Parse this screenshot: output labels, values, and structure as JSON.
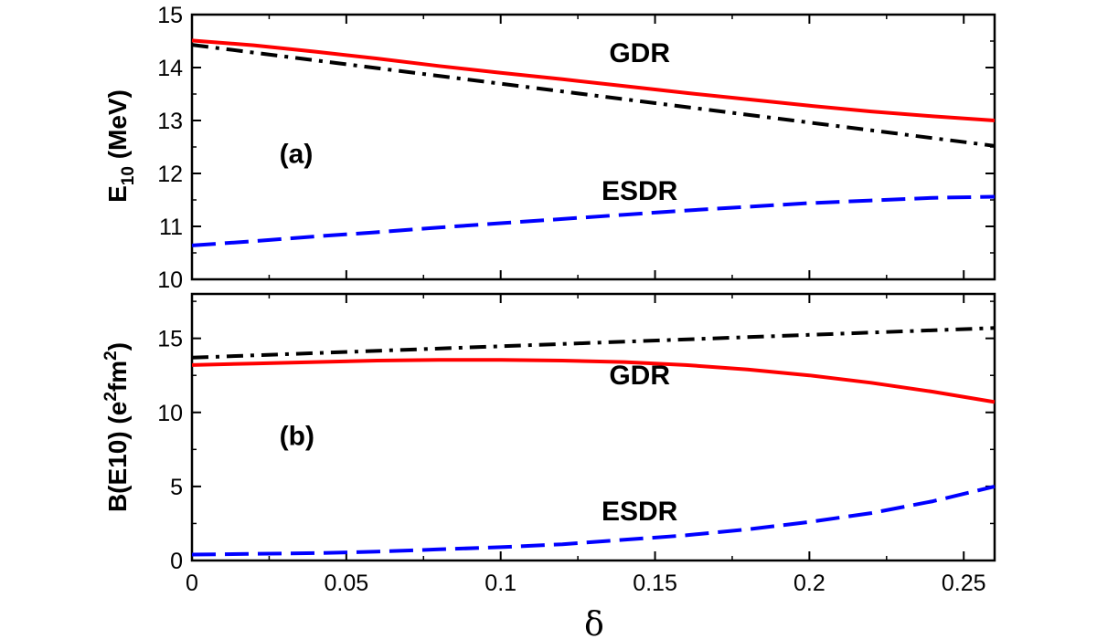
{
  "chart_data": [
    {
      "type": "line",
      "panel": "(a)",
      "ylabel_main": "E",
      "ylabel_sub": "10",
      "ylabel_unit": " (MeV)",
      "xlim": [
        0,
        0.26
      ],
      "ylim": [
        10,
        15
      ],
      "yticks": [
        10,
        11,
        12,
        13,
        14,
        15
      ],
      "grid": false,
      "annotations": [
        {
          "text": "GDR",
          "x": 0.145,
          "y": 14.1
        },
        {
          "text": "(a)",
          "x": 0.015,
          "y": 12.2
        },
        {
          "text": "ESDR",
          "x": 0.145,
          "y": 11.5
        }
      ],
      "series": [
        {
          "key": "gdr",
          "color": "#ff0000",
          "dash": "solid",
          "x": [
            0,
            0.02,
            0.04,
            0.06,
            0.08,
            0.1,
            0.12,
            0.14,
            0.16,
            0.18,
            0.2,
            0.22,
            0.24,
            0.26
          ],
          "y": [
            14.51,
            14.42,
            14.3,
            14.17,
            14.03,
            13.9,
            13.78,
            13.65,
            13.52,
            13.4,
            13.28,
            13.17,
            13.08,
            13.0
          ]
        },
        {
          "key": "dashdot",
          "color": "#000000",
          "dash": "dashdot",
          "x": [
            0,
            0.26
          ],
          "y": [
            14.43,
            12.52
          ]
        },
        {
          "key": "esdr",
          "color": "#0000ff",
          "dash": "dashed",
          "x": [
            0,
            0.02,
            0.04,
            0.06,
            0.08,
            0.1,
            0.12,
            0.14,
            0.16,
            0.18,
            0.2,
            0.22,
            0.24,
            0.26
          ],
          "y": [
            10.64,
            10.72,
            10.81,
            10.89,
            10.98,
            11.06,
            11.14,
            11.22,
            11.3,
            11.37,
            11.44,
            11.49,
            11.54,
            11.56
          ]
        }
      ]
    },
    {
      "type": "line",
      "panel": "(b)",
      "ylabel_main": "B(E10) (e",
      "ylabel_sup1": "2",
      "ylabel_mid": "fm",
      "ylabel_sup2": "2",
      "ylabel_end": ")",
      "xlabel": "δ",
      "xlim": [
        0,
        0.26
      ],
      "ylim": [
        0,
        18
      ],
      "xticks": [
        "0",
        "0.05",
        "0.1",
        "0.15",
        "0.2",
        "0.25"
      ],
      "xtick_values": [
        0,
        0.05,
        0.1,
        0.15,
        0.2,
        0.25
      ],
      "yticks": [
        0,
        5,
        10,
        15
      ],
      "grid": false,
      "annotations": [
        {
          "text": "GDR",
          "x": 0.145,
          "y": 11.9
        },
        {
          "text": "(b)",
          "x": 0.015,
          "y": 7.8
        },
        {
          "text": "ESDR",
          "x": 0.145,
          "y": 2.7
        }
      ],
      "series": [
        {
          "key": "dashdot",
          "color": "#000000",
          "dash": "dashdot",
          "x": [
            0,
            0.26
          ],
          "y": [
            13.7,
            15.7
          ]
        },
        {
          "key": "gdr",
          "color": "#ff0000",
          "dash": "solid",
          "x": [
            0,
            0.02,
            0.04,
            0.06,
            0.08,
            0.1,
            0.12,
            0.14,
            0.16,
            0.18,
            0.2,
            0.22,
            0.24,
            0.26
          ],
          "y": [
            13.2,
            13.3,
            13.4,
            13.5,
            13.55,
            13.55,
            13.5,
            13.4,
            13.2,
            12.9,
            12.5,
            12.0,
            11.4,
            10.7
          ]
        },
        {
          "key": "esdr",
          "color": "#0000ff",
          "dash": "dashed",
          "x": [
            0,
            0.02,
            0.04,
            0.06,
            0.08,
            0.1,
            0.12,
            0.14,
            0.16,
            0.18,
            0.2,
            0.22,
            0.24,
            0.26
          ],
          "y": [
            0.4,
            0.45,
            0.5,
            0.6,
            0.75,
            0.9,
            1.1,
            1.4,
            1.7,
            2.1,
            2.6,
            3.2,
            4.0,
            5.0
          ]
        }
      ]
    }
  ]
}
